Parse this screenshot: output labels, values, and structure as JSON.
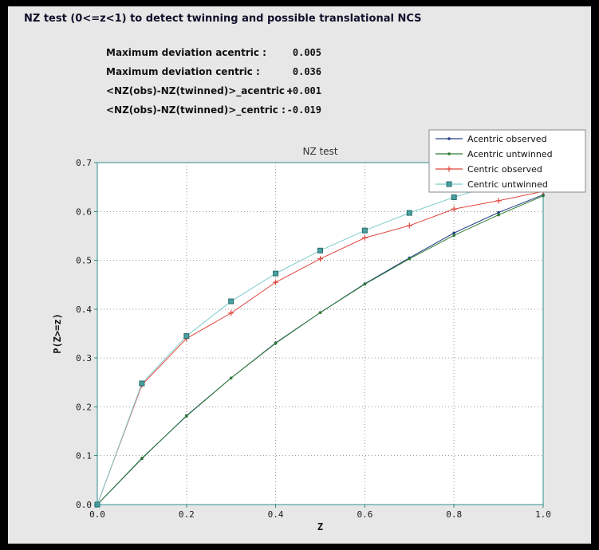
{
  "header": {
    "title": "NZ test (0<=z<1) to detect twinning and possible translational NCS"
  },
  "stats": {
    "rows": [
      {
        "label": "Maximum deviation acentric :",
        "value": "0.005"
      },
      {
        "label": "Maximum deviation centric :",
        "value": "0.036"
      },
      {
        "label": "<NZ(obs)-NZ(twinned)>_acentric :",
        "value": "+0.001"
      },
      {
        "label": "<NZ(obs)-NZ(twinned)>_centric :",
        "value": "-0.019"
      }
    ]
  },
  "chart_data": {
    "type": "line",
    "title": "NZ test",
    "xlabel": "Z",
    "ylabel": "P(Z>=z)",
    "xlim": [
      0.0,
      1.0
    ],
    "ylim": [
      0.0,
      0.7
    ],
    "xticks": [
      0.0,
      0.2,
      0.4,
      0.6,
      0.8,
      1.0
    ],
    "xtick_labels": [
      "0.0",
      "0.2",
      "0.4",
      "0.6",
      "0.8",
      "1.0"
    ],
    "yticks": [
      0.0,
      0.1,
      0.2,
      0.3,
      0.4,
      0.5,
      0.6,
      0.7
    ],
    "ytick_labels": [
      "0.0",
      "0.1",
      "0.2",
      "0.3",
      "0.4",
      "0.5",
      "0.6",
      "0.7"
    ],
    "grid": "dotted",
    "legend_position": "top-right",
    "x": [
      0.0,
      0.1,
      0.2,
      0.3,
      0.4,
      0.5,
      0.6,
      0.7,
      0.8,
      0.9,
      1.0
    ],
    "series": [
      {
        "name": "Acentric observed",
        "color": "#27408b",
        "marker": "dot",
        "values": [
          0.0,
          0.094,
          0.182,
          0.259,
          0.331,
          0.393,
          0.452,
          0.505,
          0.556,
          0.598,
          0.634
        ]
      },
      {
        "name": "Acentric untwinned",
        "color": "#2f7d32",
        "marker": "dot",
        "values": [
          0.0,
          0.095,
          0.181,
          0.259,
          0.33,
          0.393,
          0.451,
          0.503,
          0.551,
          0.593,
          0.632
        ]
      },
      {
        "name": "Centric observed",
        "color": "#e0453a",
        "marker": "plus",
        "values": [
          0.0,
          0.245,
          0.34,
          0.392,
          0.455,
          0.503,
          0.546,
          0.571,
          0.605,
          0.622,
          0.641
        ]
      },
      {
        "name": "Centric untwinned",
        "color": "#7fcdcd",
        "marker": "square",
        "marker_fill": "#49a0a0",
        "marker_edge": "#2a6b6b",
        "values": [
          0.0,
          0.248,
          0.345,
          0.416,
          0.473,
          0.52,
          0.561,
          0.597,
          0.629,
          0.657,
          0.683
        ]
      }
    ],
    "style": {
      "plot_bg": "#ffffff",
      "frame_color": "#2f8f8f",
      "grid_color": "#9b9b9b",
      "tick_text_color": "#1a1a1a",
      "title_color": "#333333",
      "legend_border": "#8a8a8a",
      "legend_bg": "#ffffff"
    }
  }
}
